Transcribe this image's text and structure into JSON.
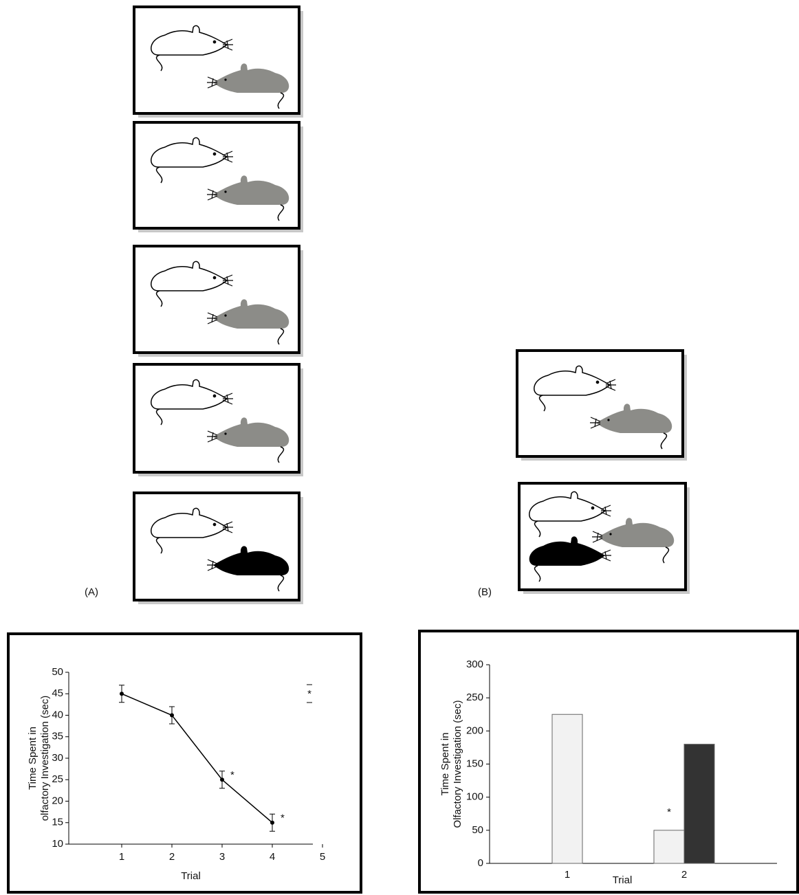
{
  "panel_labels": [
    "(A)",
    "(B)"
  ],
  "chart_data": [
    {
      "type": "line",
      "x": [
        1,
        2,
        3,
        4
      ],
      "series": [
        {
          "color": "#000000",
          "values": [
            45,
            40,
            25,
            15
          ],
          "errors": [
            2,
            2,
            2,
            2
          ],
          "significance": [
            null,
            null,
            "*",
            "*"
          ]
        }
      ],
      "xlabel": "Trial",
      "ylabel": [
        "Time Spent in",
        "olfactory Investigation (sec)"
      ],
      "xlim": [
        0,
        5
      ],
      "xticks": [
        1,
        2,
        3,
        4,
        5
      ],
      "ylim": [
        10,
        50
      ],
      "yticks": [
        10,
        15,
        20,
        25,
        30,
        35,
        40,
        45,
        50
      ],
      "key_label": "*"
    },
    {
      "type": "bar",
      "categories": [
        "1",
        "2"
      ],
      "series": [
        {
          "color": "#f2f2f2",
          "values": [
            225,
            50
          ],
          "significance": [
            null,
            "*"
          ]
        },
        {
          "color": "#333333",
          "values": [
            null,
            180
          ]
        }
      ],
      "xlabel": "Trial",
      "ylabel": [
        "Time Spent in",
        "Olfactory Investigation (sec)"
      ],
      "ylim": [
        0,
        300
      ],
      "yticks": [
        0,
        50,
        100,
        150,
        200,
        250,
        300
      ]
    }
  ]
}
